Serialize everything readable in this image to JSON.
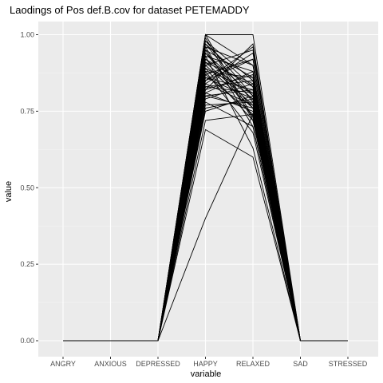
{
  "chart_data": {
    "type": "line",
    "title": "Laodings of Pos def.B.cov for dataset PETEMADDY",
    "xlabel": "variable",
    "ylabel": "value",
    "categories": [
      "ANGRY",
      "ANXIOUS",
      "DEPRESSED",
      "HAPPY",
      "RELAXED",
      "SAD",
      "STRESSED"
    ],
    "yticks": [
      "0.00",
      "0.25",
      "0.50",
      "0.75",
      "1.00"
    ],
    "ylim": [
      0,
      1
    ],
    "grid": true,
    "panel_color": "#ebebeb",
    "line_color": "#000000",
    "series_happy_relaxed": [
      [
        0.4,
        0.74
      ],
      [
        0.69,
        0.6
      ],
      [
        0.72,
        0.74
      ],
      [
        0.75,
        0.8
      ],
      [
        0.76,
        0.79
      ],
      [
        0.77,
        0.78
      ],
      [
        0.79,
        0.84
      ],
      [
        0.8,
        0.82
      ],
      [
        0.81,
        0.75
      ],
      [
        0.82,
        0.97
      ],
      [
        0.83,
        0.85
      ],
      [
        0.84,
        0.77
      ],
      [
        0.85,
        0.92
      ],
      [
        0.86,
        0.82
      ],
      [
        0.87,
        0.74
      ],
      [
        0.88,
        0.86
      ],
      [
        0.89,
        0.81
      ],
      [
        0.9,
        0.95
      ],
      [
        0.91,
        0.77
      ],
      [
        0.92,
        0.83
      ],
      [
        0.93,
        0.88
      ],
      [
        0.94,
        0.8
      ],
      [
        0.95,
        0.73
      ],
      [
        0.96,
        0.9
      ],
      [
        0.97,
        0.78
      ],
      [
        0.98,
        0.85
      ],
      [
        0.99,
        0.72
      ],
      [
        1.0,
        1.0
      ],
      [
        1.0,
        0.9
      ],
      [
        1.0,
        0.73
      ],
      [
        0.93,
        0.63
      ],
      [
        0.87,
        0.92
      ],
      [
        0.81,
        0.88
      ],
      [
        0.78,
        0.7
      ],
      [
        0.9,
        0.76
      ],
      [
        0.84,
        0.94
      ],
      [
        0.92,
        0.79
      ],
      [
        0.88,
        0.68
      ],
      [
        0.95,
        0.86
      ],
      [
        0.83,
        0.81
      ],
      [
        0.86,
        0.79
      ],
      [
        0.89,
        0.72
      ],
      [
        0.91,
        0.84
      ],
      [
        0.94,
        0.76
      ],
      [
        0.97,
        0.83
      ],
      [
        0.82,
        0.87
      ],
      [
        0.8,
        0.76
      ],
      [
        0.96,
        0.7
      ],
      [
        0.98,
        0.8
      ],
      [
        0.85,
        0.96
      ]
    ]
  }
}
